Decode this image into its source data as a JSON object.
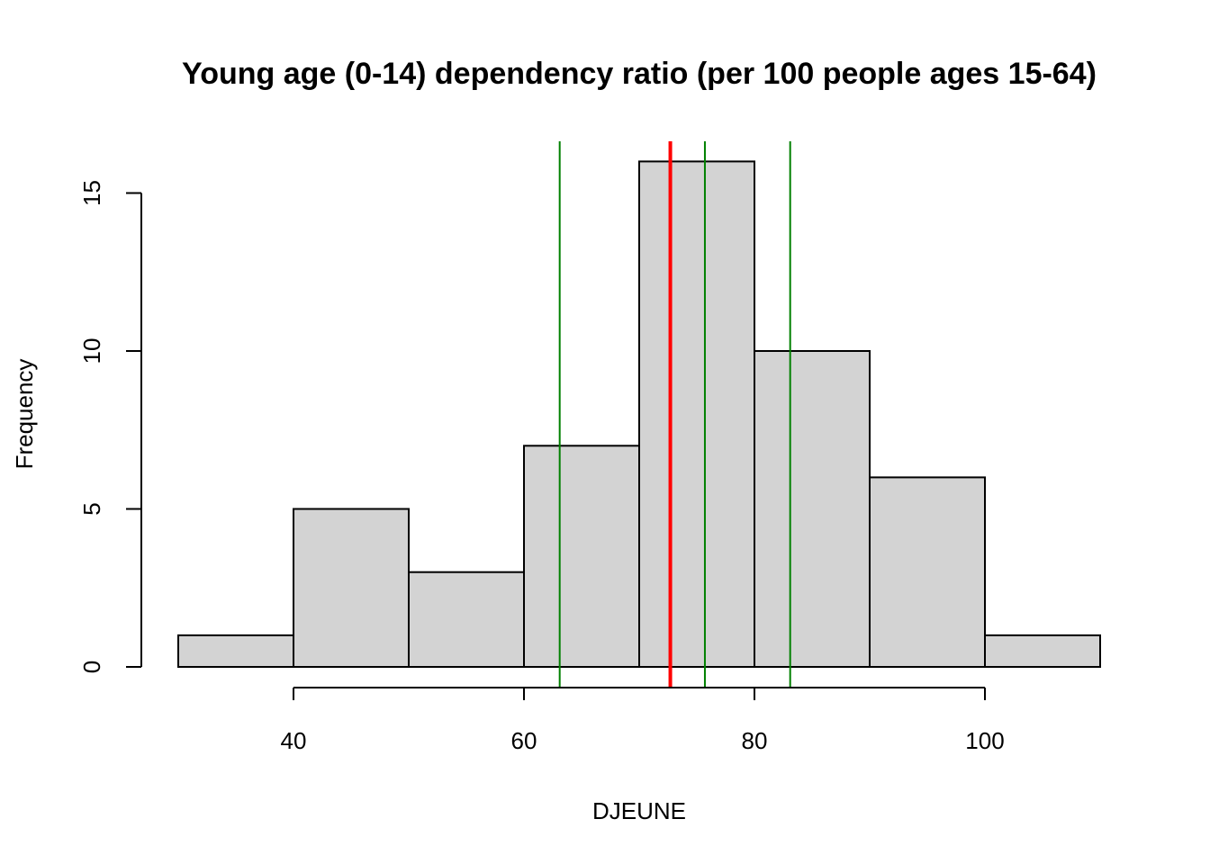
{
  "chart_data": {
    "type": "bar",
    "subtype": "histogram",
    "title": "Young age (0-14) dependency ratio (per 100 people ages 15-64)",
    "xlabel": "DJEUNE",
    "ylabel": "Frequency",
    "bins": [
      {
        "from": 30,
        "to": 40,
        "count": 1
      },
      {
        "from": 40,
        "to": 50,
        "count": 5
      },
      {
        "from": 50,
        "to": 60,
        "count": 3
      },
      {
        "from": 60,
        "to": 70,
        "count": 7
      },
      {
        "from": 70,
        "to": 80,
        "count": 16
      },
      {
        "from": 80,
        "to": 90,
        "count": 10
      },
      {
        "from": 90,
        "to": 100,
        "count": 6
      },
      {
        "from": 100,
        "to": 110,
        "count": 1
      }
    ],
    "xlim": [
      30,
      110
    ],
    "ylim": [
      0,
      16
    ],
    "x_ticks": [
      40,
      60,
      80,
      100
    ],
    "x_tick_labels": [
      "40",
      "60",
      "80",
      "100"
    ],
    "y_ticks": [
      0,
      5,
      10,
      15
    ],
    "y_tick_labels": [
      "0",
      "5",
      "10",
      "15"
    ],
    "reference_lines": [
      {
        "x": 63.1,
        "color": "#008000"
      },
      {
        "x": 72.7,
        "color": "#ff0000"
      },
      {
        "x": 75.7,
        "color": "#008000"
      },
      {
        "x": 83.1,
        "color": "#008000"
      }
    ],
    "bar_fill": "#d3d3d3",
    "bar_stroke": "#000000",
    "grid": false,
    "legend": "none"
  }
}
